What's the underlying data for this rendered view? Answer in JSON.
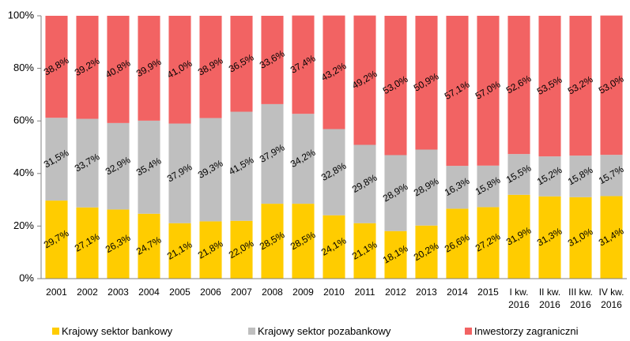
{
  "chart_data": {
    "type": "bar",
    "stacked": true,
    "percent": true,
    "categories": [
      [
        "2001"
      ],
      [
        "2002"
      ],
      [
        "2003"
      ],
      [
        "2004"
      ],
      [
        "2005"
      ],
      [
        "2006"
      ],
      [
        "2007"
      ],
      [
        "2008"
      ],
      [
        "2009"
      ],
      [
        "2010"
      ],
      [
        "2011"
      ],
      [
        "2012"
      ],
      [
        "2013"
      ],
      [
        "2014"
      ],
      [
        "2015"
      ],
      [
        "I kw.",
        "2016"
      ],
      [
        "II kw.",
        "2016"
      ],
      [
        "III kw.",
        "2016"
      ],
      [
        "IV kw.",
        "2016"
      ]
    ],
    "series": [
      {
        "name": "Krajowy sektor bankowy",
        "color": "#FFCC00",
        "values": [
          29.7,
          27.1,
          26.3,
          24.7,
          21.1,
          21.8,
          22.0,
          28.5,
          28.5,
          24.1,
          21.1,
          18.1,
          20.2,
          26.6,
          27.2,
          31.9,
          31.3,
          31.0,
          31.4
        ],
        "labels": [
          "29,7%",
          "27,1%",
          "26,3%",
          "24,7%",
          "21,1%",
          "21,8%",
          "22,0%",
          "28,5%",
          "28,5%",
          "24,1%",
          "21,1%",
          "18,1%",
          "20,2%",
          "26,6%",
          "27,2%",
          "31,9%",
          "31,3%",
          "31,0%",
          "31,4%"
        ]
      },
      {
        "name": "Krajowy sektor pozabankowy",
        "color": "#BFBFBF",
        "values": [
          31.5,
          33.7,
          32.9,
          35.4,
          37.9,
          39.3,
          41.5,
          37.9,
          34.2,
          32.8,
          29.8,
          28.9,
          28.9,
          16.3,
          15.8,
          15.5,
          15.2,
          15.8,
          15.7
        ],
        "labels": [
          "31,5%",
          "33,7%",
          "32,9%",
          "35,4%",
          "37,9%",
          "39,3%",
          "41,5%",
          "37,9%",
          "34,2%",
          "32,8%",
          "29,8%",
          "28,9%",
          "28,9%",
          "16,3%",
          "15,8%",
          "15,5%",
          "15,2%",
          "15,8%",
          "15,7%"
        ]
      },
      {
        "name": "Inwestorzy zagraniczni",
        "color": "#F26363",
        "values": [
          38.8,
          39.2,
          40.8,
          39.9,
          41.0,
          38.9,
          36.5,
          33.6,
          37.4,
          43.2,
          49.2,
          53.0,
          50.9,
          57.1,
          57.0,
          52.6,
          53.5,
          53.2,
          53.0
        ],
        "labels": [
          "38,8%",
          "39,2%",
          "40,8%",
          "39,9%",
          "41,0%",
          "38,9%",
          "36,5%",
          "33,6%",
          "37,4%",
          "43,2%",
          "49,2%",
          "53,0%",
          "50,9%",
          "57,1%",
          "57,0%",
          "52,6%",
          "53,5%",
          "53,2%",
          "53,0%"
        ]
      }
    ],
    "ylim": [
      0,
      100
    ],
    "yticks": [
      "0%",
      "20%",
      "40%",
      "60%",
      "80%",
      "100%"
    ],
    "legend_position": "bottom",
    "grid": false
  }
}
